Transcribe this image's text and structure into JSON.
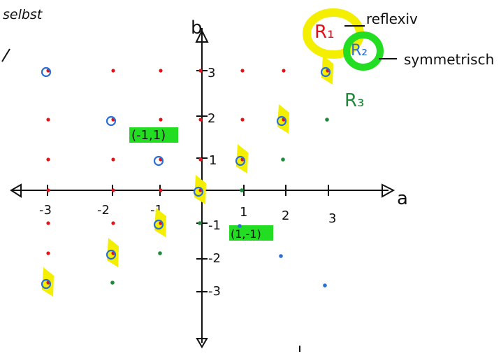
{
  "margin_text": "selbst",
  "axes": {
    "x_label": "a",
    "y_label": "b"
  },
  "x_ticks": [
    "-3",
    "-2",
    "-1",
    "1",
    "2",
    "3"
  ],
  "y_ticks": [
    "3",
    "2",
    "1",
    "-1",
    "-2",
    "-3"
  ],
  "relations": {
    "r1": {
      "label": "R₁",
      "property": "reflexiv",
      "color": "#e0151c",
      "highlight": "#f4ee00"
    },
    "r2": {
      "label": "R₂",
      "property": "symmetrisch",
      "color": "#2a6fd6",
      "highlight": "#22dd22"
    },
    "r3": {
      "label": "R₃",
      "color": "#1f8a3a"
    }
  },
  "point_labels": {
    "p1": "(-1,1)",
    "p2": "(1,-1)"
  },
  "colors": {
    "ink": "#111111",
    "red": "#e0151c",
    "blue": "#2a6fd6",
    "green": "#1f8a3a",
    "yellow": "#f4ee00",
    "lime": "#22dd22"
  },
  "points": {
    "red": [
      {
        "a": -3,
        "b": 3
      },
      {
        "a": -2,
        "b": 3
      },
      {
        "a": -1,
        "b": 3
      },
      {
        "a": 0,
        "b": 3
      },
      {
        "a": 1,
        "b": 3
      },
      {
        "a": 2,
        "b": 3
      },
      {
        "a": 3,
        "b": 3
      },
      {
        "a": -3,
        "b": 2
      },
      {
        "a": -2,
        "b": 2
      },
      {
        "a": -1,
        "b": 2
      },
      {
        "a": 0,
        "b": 2
      },
      {
        "a": 1,
        "b": 2
      },
      {
        "a": 2,
        "b": 2
      },
      {
        "a": -3,
        "b": 1
      },
      {
        "a": -2,
        "b": 1
      },
      {
        "a": -1,
        "b": 1
      },
      {
        "a": 0,
        "b": 1
      },
      {
        "a": 1,
        "b": 1
      },
      {
        "a": -3,
        "b": 0
      },
      {
        "a": -2,
        "b": 0
      },
      {
        "a": -1,
        "b": 0
      },
      {
        "a": 0,
        "b": 0
      },
      {
        "a": -3,
        "b": -1
      },
      {
        "a": -2,
        "b": -1
      },
      {
        "a": -1,
        "b": -1
      },
      {
        "a": -3,
        "b": -2
      },
      {
        "a": -2,
        "b": -2
      },
      {
        "a": -3,
        "b": -3
      }
    ],
    "green": [
      {
        "a": 3,
        "b": 2
      },
      {
        "a": 2,
        "b": 1
      },
      {
        "a": 1,
        "b": 0
      },
      {
        "a": 0,
        "b": -1
      },
      {
        "a": -1,
        "b": -2
      },
      {
        "a": -2,
        "b": -3
      }
    ],
    "blue_small": [
      {
        "a": 1,
        "b": -1
      },
      {
        "a": 2,
        "b": -2
      },
      {
        "a": 3,
        "b": -3
      }
    ],
    "blue_circles": [
      {
        "a": -3,
        "b": 3
      },
      {
        "a": -2,
        "b": 2
      },
      {
        "a": -1,
        "b": 1
      },
      {
        "a": 0,
        "b": 0
      },
      {
        "a": 1,
        "b": 1
      },
      {
        "a": 2,
        "b": 2
      },
      {
        "a": 3,
        "b": 3
      },
      {
        "a": -1,
        "b": -1
      },
      {
        "a": -2,
        "b": -2
      },
      {
        "a": -3,
        "b": -3
      }
    ],
    "yellow_highlights": [
      {
        "a": 0,
        "b": 0
      },
      {
        "a": 1,
        "b": 1
      },
      {
        "a": 2,
        "b": 2
      },
      {
        "a": 3,
        "b": 3
      },
      {
        "a": -1,
        "b": -1
      },
      {
        "a": -2,
        "b": -2
      },
      {
        "a": -3,
        "b": -3
      }
    ]
  }
}
